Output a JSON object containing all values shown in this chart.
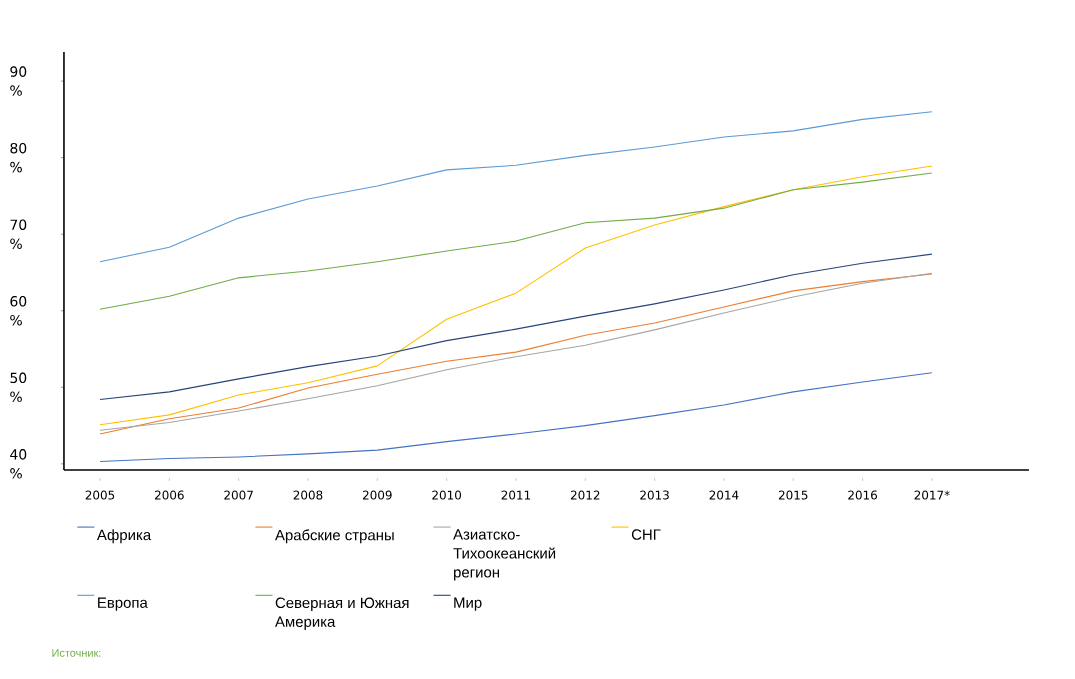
{
  "chart_data": {
    "type": "line",
    "categories": [
      "2005",
      "2006",
      "2007",
      "2008",
      "2009",
      "2010",
      "2011",
      "2012",
      "2013",
      "2014",
      "2015",
      "2016",
      "2017*"
    ],
    "series": [
      {
        "name": "Африка",
        "color": "#4472c4",
        "values": [
          40.3,
          40.7,
          40.9,
          41.3,
          41.8,
          42.9,
          43.9,
          45.0,
          46.3,
          47.7,
          49.4,
          50.7,
          51.9
        ]
      },
      {
        "name": "Арабские страны",
        "color": "#ed7d31",
        "values": [
          43.9,
          45.9,
          47.3,
          49.9,
          51.7,
          53.4,
          54.6,
          56.8,
          58.4,
          60.5,
          62.6,
          63.8,
          64.8
        ]
      },
      {
        "name": "Азиатско-Тихоокеанский регион",
        "color": "#a5a5a5",
        "values": [
          44.4,
          45.4,
          46.9,
          48.5,
          50.2,
          52.3,
          54.0,
          55.5,
          57.5,
          59.7,
          61.8,
          63.6,
          64.9
        ]
      },
      {
        "name": "СНГ",
        "color": "#ffc000",
        "values": [
          45.1,
          46.4,
          49.0,
          50.6,
          52.8,
          58.9,
          62.3,
          68.2,
          71.2,
          73.6,
          75.8,
          77.5,
          78.9
        ]
      },
      {
        "name": "Европа",
        "color": "#5b9bd5",
        "values": [
          66.4,
          68.3,
          72.1,
          74.6,
          76.3,
          78.4,
          79.0,
          80.3,
          81.4,
          82.7,
          83.5,
          85.0,
          86.0
        ]
      },
      {
        "name": "Северная и Южная Америка",
        "color": "#70ad47",
        "values": [
          60.2,
          61.9,
          64.3,
          65.2,
          66.4,
          67.8,
          69.1,
          71.5,
          72.1,
          73.4,
          75.8,
          76.8,
          78.0
        ]
      },
      {
        "name": "Мир",
        "color": "#264478",
        "values": [
          48.4,
          49.4,
          51.1,
          52.7,
          54.1,
          56.1,
          57.6,
          59.3,
          60.9,
          62.7,
          64.7,
          66.2,
          67.4
        ]
      }
    ],
    "ylim": [
      39.2,
      93.8
    ],
    "yticks": [
      {
        "value": 40,
        "label": "40 %"
      },
      {
        "value": 50,
        "label": "50 %"
      },
      {
        "value": 60,
        "label": "60 %"
      },
      {
        "value": 70,
        "label": "70 %"
      },
      {
        "value": 80,
        "label": "80 %"
      },
      {
        "value": 90,
        "label": "90 %"
      }
    ],
    "legend": "bottom",
    "annotations": [
      "Источник:"
    ]
  }
}
